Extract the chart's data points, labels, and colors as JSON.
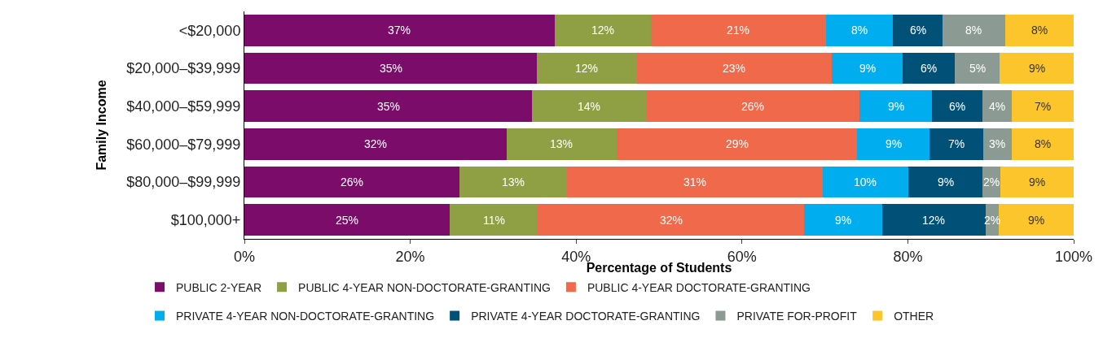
{
  "chart_data": {
    "type": "bar",
    "orientation": "horizontal",
    "stacked": true,
    "xlabel": "Percentage of Students",
    "ylabel": "Family Income",
    "categories": [
      "<$20,000",
      "$20,000–$39,999",
      "$40,000–$59,999",
      "$60,000–$79,999",
      "$80,000–$99,999",
      "$100,000+"
    ],
    "series": [
      {
        "name": "PUBLIC 2-YEAR",
        "color": "#7b0c6a",
        "values": [
          37.4,
          35.3,
          34.7,
          31.6,
          25.9,
          24.8
        ],
        "value_labels": [
          "37%",
          "35%",
          "35%",
          "32%",
          "26%",
          "25%"
        ]
      },
      {
        "name": "PUBLIC 4-YEAR NON-DOCTORATE-GRANTING",
        "color": "#8fa044",
        "values": [
          11.6,
          12.0,
          13.7,
          13.3,
          13.0,
          10.6
        ],
        "value_labels": [
          "12%",
          "12%",
          "14%",
          "13%",
          "13%",
          "11%"
        ]
      },
      {
        "name": "PUBLIC 4-YEAR DOCTORATE-GRANTING",
        "color": "#f0694b",
        "values": [
          21.1,
          23.5,
          25.8,
          29.0,
          30.8,
          32.1
        ],
        "value_labels": [
          "21%",
          "23%",
          "26%",
          "29%",
          "31%",
          "32%"
        ]
      },
      {
        "name": "PRIVATE 4-YEAR NON-DOCTORATE-GRANTING",
        "color": "#00aeef",
        "values": [
          8.1,
          8.6,
          8.7,
          8.7,
          10.4,
          9.4
        ],
        "value_labels": [
          "8%",
          "9%",
          "9%",
          "9%",
          "10%",
          "9%"
        ]
      },
      {
        "name": "PRIVATE 4-YEAR DOCTORATE-GRANTING",
        "color": "#005078",
        "values": [
          6.0,
          6.3,
          6.1,
          6.5,
          8.9,
          12.5
        ],
        "value_labels": [
          "6%",
          "6%",
          "6%",
          "7%",
          "9%",
          "12%"
        ]
      },
      {
        "name": "PRIVATE FOR-PROFIT",
        "color": "#8c9a94",
        "values": [
          7.5,
          5.4,
          3.5,
          3.4,
          2.2,
          1.6
        ],
        "value_labels": [
          "8%",
          "5%",
          "4%",
          "3%",
          "2%",
          "2%"
        ]
      },
      {
        "name": "OTHER",
        "color": "#fdc52c",
        "values": [
          8.3,
          8.9,
          7.5,
          7.5,
          8.8,
          9.0
        ],
        "value_labels": [
          "8%",
          "9%",
          "7%",
          "8%",
          "9%",
          "9%"
        ]
      }
    ],
    "xlim": [
      0,
      100
    ],
    "xticks": [
      {
        "value": 0,
        "label": "0%"
      },
      {
        "value": 20,
        "label": "20%"
      },
      {
        "value": 40,
        "label": "40%"
      },
      {
        "value": 60,
        "label": "60%"
      },
      {
        "value": 80,
        "label": "80%"
      },
      {
        "value": 100,
        "label": "100%"
      }
    ],
    "grid": false,
    "legend": "bottom"
  }
}
